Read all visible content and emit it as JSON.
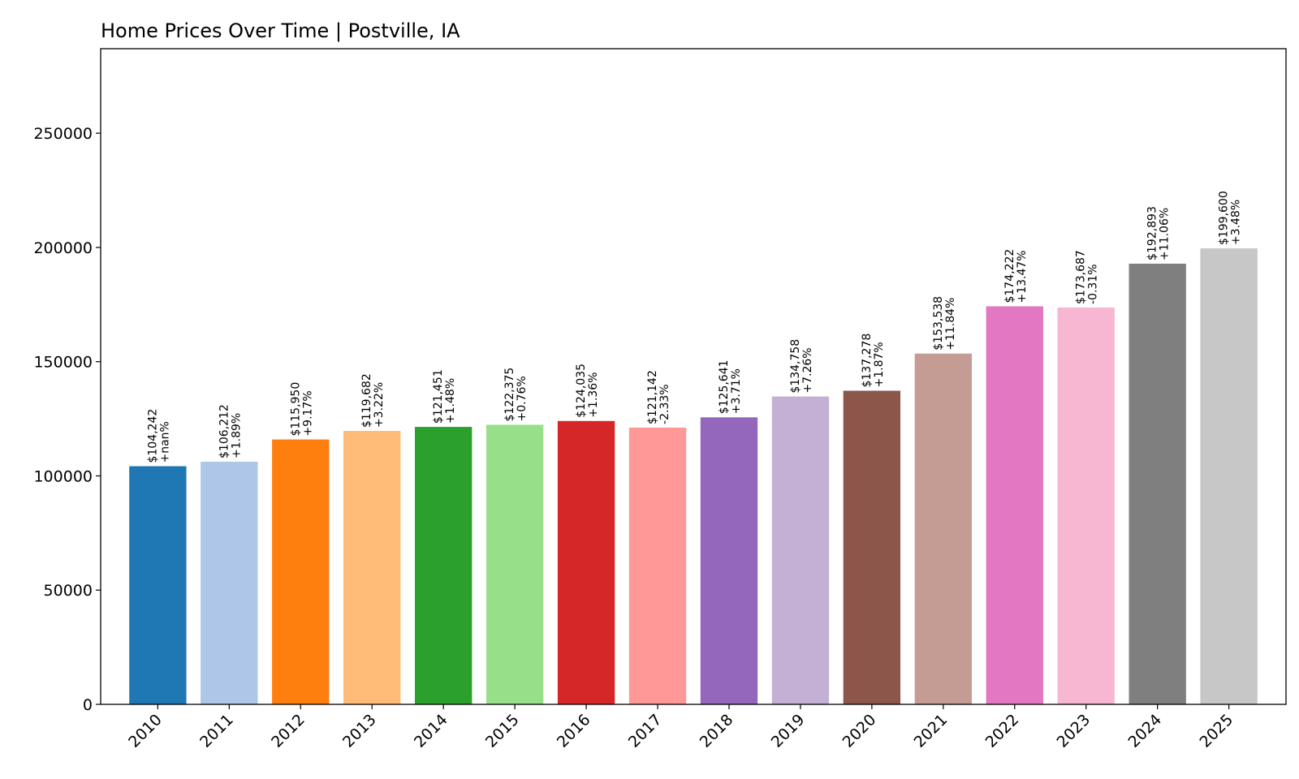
{
  "chart_data": {
    "type": "bar",
    "title": "Home Prices Over Time | Postville, IA",
    "xlabel": "",
    "ylabel": "",
    "categories": [
      "2010",
      "2011",
      "2012",
      "2013",
      "2014",
      "2015",
      "2016",
      "2017",
      "2018",
      "2019",
      "2020",
      "2021",
      "2022",
      "2023",
      "2024",
      "2025"
    ],
    "values": [
      104242,
      106212,
      115950,
      119682,
      121451,
      122375,
      124035,
      121142,
      125641,
      134758,
      137278,
      153538,
      174222,
      173687,
      192893,
      199600
    ],
    "value_labels": [
      "$104,242",
      "$106,212",
      "$115,950",
      "$119,682",
      "$121,451",
      "$122,375",
      "$124,035",
      "$121,142",
      "$125,641",
      "$134,758",
      "$137,278",
      "$153,538",
      "$174,222",
      "$173,687",
      "$192,893",
      "$199,600"
    ],
    "change_labels": [
      "+nan%",
      "+1.89%",
      "+9.17%",
      "+3.22%",
      "+1.48%",
      "+0.76%",
      "+1.36%",
      "-2.33%",
      "+3.71%",
      "+7.26%",
      "+1.87%",
      "+11.84%",
      "+13.47%",
      "-0.31%",
      "+11.06%",
      "+3.48%"
    ],
    "colors": [
      "#1f77b4",
      "#aec7e8",
      "#ff7f0e",
      "#ffbb78",
      "#2ca02c",
      "#98df8a",
      "#d62728",
      "#ff9896",
      "#9467bd",
      "#c5b0d5",
      "#8c564b",
      "#c49c94",
      "#e377c2",
      "#f7b6d2",
      "#7f7f7f",
      "#c7c7c7"
    ],
    "yticks": [
      0,
      50000,
      100000,
      150000,
      200000,
      250000
    ],
    "ylim": [
      0,
      287000
    ],
    "grid": false,
    "legend": "none"
  }
}
